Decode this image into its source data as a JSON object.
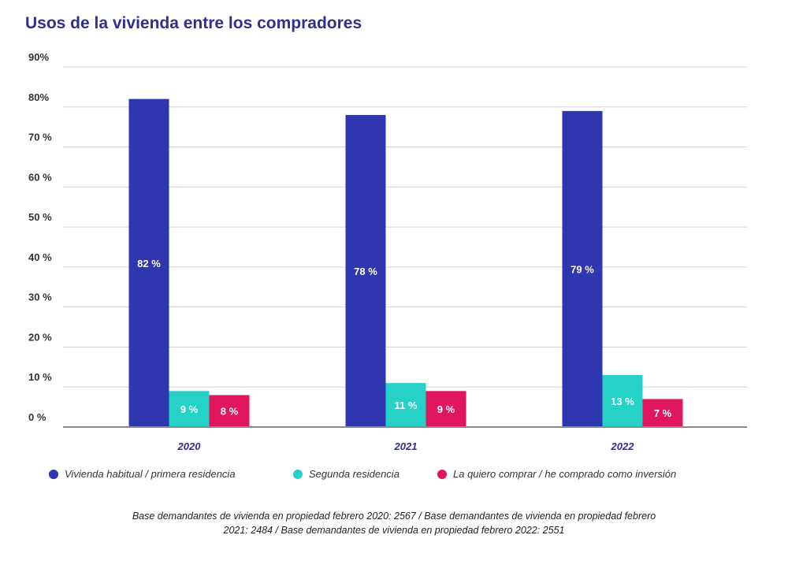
{
  "chart_data": {
    "type": "bar",
    "title": "Usos de la vivienda entre los compradores",
    "categories": [
      "2020",
      "2021",
      "2022"
    ],
    "ylim": [
      0,
      90
    ],
    "y_ticks": [
      {
        "value": 0,
        "label": "0 %"
      },
      {
        "value": 10,
        "label": "10 %"
      },
      {
        "value": 20,
        "label": "20 %"
      },
      {
        "value": 30,
        "label": "30 %"
      },
      {
        "value": 40,
        "label": "40 %"
      },
      {
        "value": 50,
        "label": "50 %"
      },
      {
        "value": 60,
        "label": "60 %"
      },
      {
        "value": 70,
        "label": "70 %"
      },
      {
        "value": 80,
        "label": "80%"
      },
      {
        "value": 90,
        "label": "90%"
      }
    ],
    "series": [
      {
        "name": "Vivienda habitual / primera residencia",
        "color": "#2e37b0",
        "values": [
          82,
          78,
          79
        ],
        "labels": [
          "82 %",
          "78 %",
          "79 %"
        ]
      },
      {
        "name": "Segunda residencia",
        "color": "#26d1c8",
        "values": [
          9,
          11,
          13
        ],
        "labels": [
          "9 %",
          "11 %",
          "13 %"
        ]
      },
      {
        "name": "La quiero comprar / he comprado como inversión",
        "color": "#e0175f",
        "values": [
          8,
          9,
          7
        ],
        "labels": [
          "8 %",
          "9 %",
          "7 %"
        ]
      }
    ],
    "grid": true,
    "legend": "bottom"
  },
  "footnote": {
    "line1": "Base demandantes de vivienda en propiedad febrero 2020: 2567 / Base demandantes de vivienda en propiedad febrero",
    "line2": "2021: 2484 / Base demandantes de vivienda en propiedad febrero 2022: 2551"
  }
}
